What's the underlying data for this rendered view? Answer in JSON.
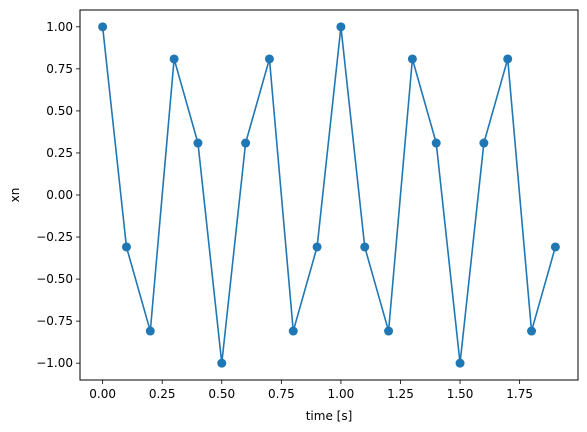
{
  "chart_data": {
    "type": "line",
    "title": "",
    "xlabel": "time [s]",
    "ylabel": "xn",
    "xlim": [
      -0.095,
      1.995
    ],
    "ylim": [
      -1.1,
      1.1
    ],
    "xticks": [
      0.0,
      0.25,
      0.5,
      0.75,
      1.0,
      1.25,
      1.5,
      1.75
    ],
    "xtick_labels": [
      "0.00",
      "0.25",
      "0.50",
      "0.75",
      "1.00",
      "1.25",
      "1.50",
      "1.75"
    ],
    "yticks": [
      -1.0,
      -0.75,
      -0.5,
      -0.25,
      0.0,
      0.25,
      0.5,
      0.75,
      1.0
    ],
    "ytick_labels": [
      "−1.00",
      "−0.75",
      "−0.50",
      "−0.25",
      "0.00",
      "0.25",
      "0.50",
      "0.75",
      "1.00"
    ],
    "grid": false,
    "color": "#1f77b4",
    "marker": "circle",
    "series": [
      {
        "x": [
          0.0,
          0.1,
          0.2,
          0.3,
          0.4,
          0.5,
          0.6,
          0.7,
          0.8,
          0.9,
          1.0,
          1.1,
          1.2,
          1.3,
          1.4,
          1.5,
          1.6,
          1.7,
          1.8,
          1.9
        ],
        "y": [
          1.0,
          -0.309,
          -0.809,
          0.809,
          0.309,
          -1.0,
          0.309,
          0.809,
          -0.809,
          -0.309,
          1.0,
          -0.309,
          -0.809,
          0.809,
          0.309,
          -1.0,
          0.309,
          0.809,
          -0.809,
          -0.309
        ]
      }
    ]
  }
}
